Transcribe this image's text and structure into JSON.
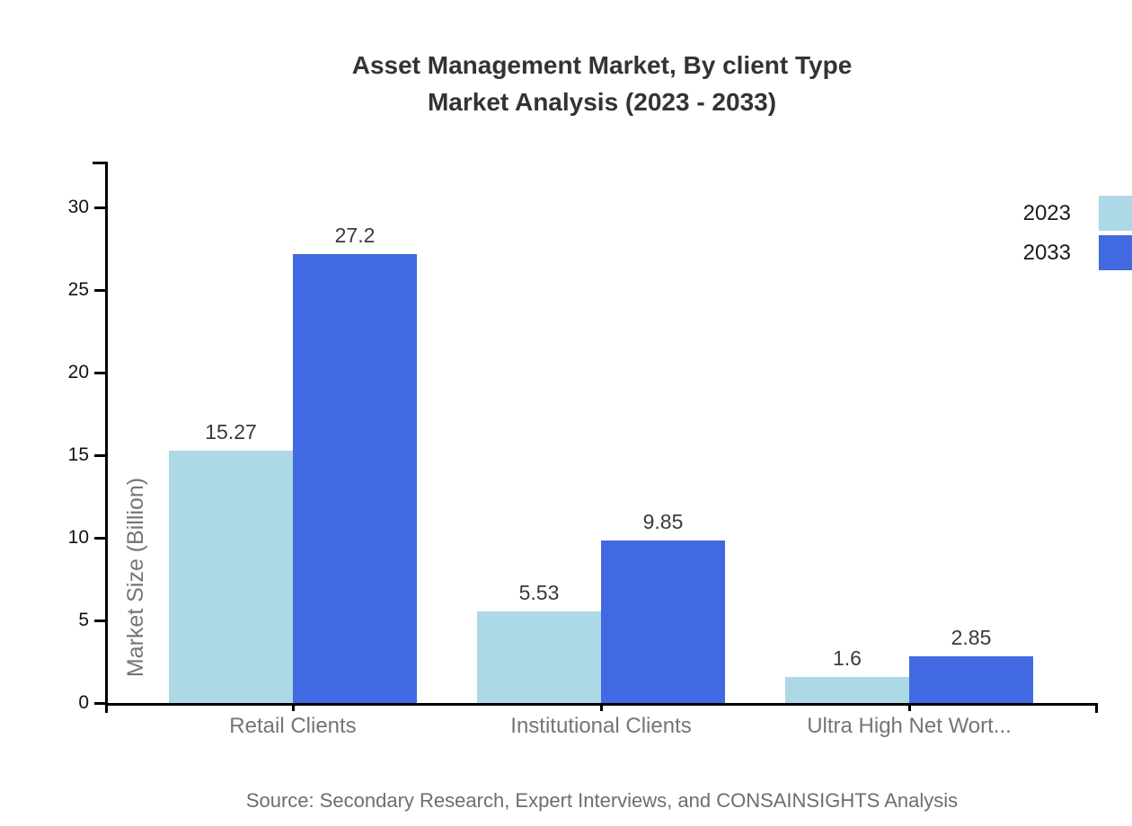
{
  "title": {
    "line1": "Asset Management Market, By client Type",
    "line2": "Market Analysis (2023 - 2033)"
  },
  "y_axis_title": "Market Size (Billion)",
  "source": "Source: Secondary Research, Expert Interviews, and CONSAINSIGHTS Analysis",
  "colors": {
    "series_2023": "#ADD8E6",
    "series_2033": "#4169E1",
    "axis": "#000000",
    "title_text": "#333333",
    "muted_text": "#757575",
    "source_text": "#6e6e6e"
  },
  "chart_data": {
    "type": "bar",
    "title": "Asset Management Market, By client Type — Market Analysis (2023 - 2033)",
    "categories": [
      "Retail Clients",
      "Institutional Clients",
      "Ultra High Net Wort..."
    ],
    "series": [
      {
        "name": "2023",
        "color": "#ADD8E6",
        "values": [
          15.27,
          5.53,
          1.6
        ]
      },
      {
        "name": "2033",
        "color": "#4169E1",
        "values": [
          27.2,
          9.85,
          2.85
        ]
      }
    ],
    "data_labels": [
      [
        "15.27",
        "5.53",
        "1.6"
      ],
      [
        "27.2",
        "9.85",
        "2.85"
      ]
    ],
    "xlabel": "",
    "ylabel": "Market Size (Billion)",
    "yticks": [
      0,
      5,
      10,
      15,
      20,
      25,
      30
    ],
    "ylim": [
      0,
      32.8
    ],
    "grid": false,
    "legend_position": "top-right",
    "bar_orientation": "vertical"
  }
}
